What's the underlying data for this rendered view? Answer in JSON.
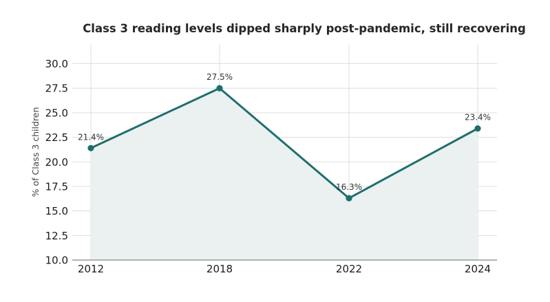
{
  "chart_data": {
    "type": "line",
    "title": "Class 3 reading levels dipped sharply post-pandemic, still recovering",
    "xlabel": "",
    "ylabel": "% of Class 3 children",
    "categories": [
      "2012",
      "2018",
      "2022",
      "2024"
    ],
    "series": [
      {
        "values": [
          21.4,
          27.5,
          16.3,
          23.4
        ]
      }
    ],
    "data_labels": [
      "21.4%",
      "27.5%",
      "16.3%",
      "23.4%"
    ],
    "ylim": [
      10.0,
      32.0
    ],
    "yticks": [
      "10.0",
      "12.5",
      "15.0",
      "17.5",
      "20.0",
      "22.5",
      "25.0",
      "27.5",
      "30.0"
    ],
    "grid": true,
    "area_fill": true,
    "colors": {
      "line": "#1f6e6e",
      "area": "#eaf1f0",
      "grid": "#dddddd",
      "axis": "#999999"
    }
  }
}
